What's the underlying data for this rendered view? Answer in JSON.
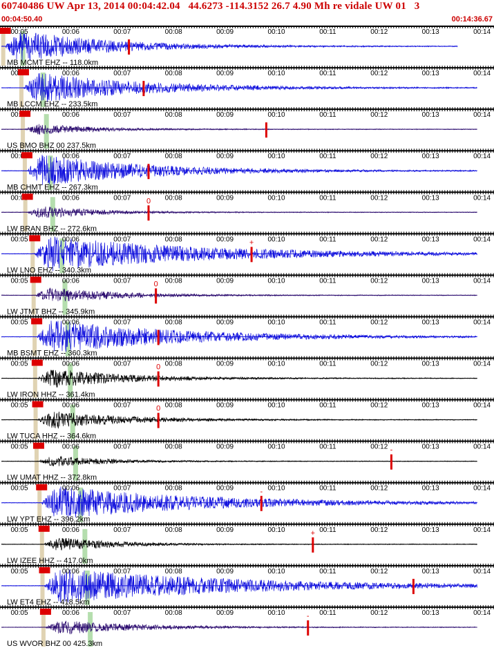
{
  "header": {
    "title": "60740486 UW Apr 13, 2014 00:04:42.04   44.6273 -114.3152 26.7 4.90 Mh re vidale UW 01   3",
    "time_left": "00:04:50.40",
    "time_right": "00:14:36.67"
  },
  "colors": {
    "text_red": "#cc0000",
    "trace_blue": "#1010dd",
    "trace_purple": "#2a0a6e",
    "trace_black": "#000000",
    "pick_red": "#dd0000",
    "band_green": "#a8d8a0",
    "band_tan": "#d8c8a0"
  },
  "chart_data": {
    "type": "line",
    "x_tick_labels": [
      "00:05",
      "00:06",
      "00:07",
      "00:08",
      "00:09",
      "00:10",
      "00:11",
      "00:12",
      "00:13",
      "00:14"
    ],
    "traces": [
      {
        "label": "MB MCMT EHZ -- 118.0km",
        "color": "trace_blue",
        "p_onset": 0.008,
        "end": 0.93,
        "amp": 1.0,
        "decay": 0.18,
        "pick": 0.26,
        "pick_mark": ""
      },
      {
        "label": "MB LCCM EHZ -- 233.5km",
        "color": "trace_blue",
        "p_onset": 0.045,
        "end": 0.97,
        "amp": 0.9,
        "decay": 0.22,
        "pick": 0.29,
        "pick_mark": ""
      },
      {
        "label": "US BMO BHZ 00 237.5km",
        "color": "trace_purple",
        "p_onset": 0.048,
        "end": 0.97,
        "amp": 0.35,
        "decay": 0.12,
        "pick": 0.54,
        "pick_mark": ""
      },
      {
        "label": "MB CHMT EHZ -- 267.3km",
        "color": "trace_blue",
        "p_onset": 0.052,
        "end": 0.97,
        "amp": 0.95,
        "decay": 0.22,
        "pick": 0.3,
        "pick_mark": ""
      },
      {
        "label": "LW BRAN BHZ -- 272.6km",
        "color": "trace_purple",
        "p_onset": 0.053,
        "end": 0.97,
        "amp": 0.4,
        "decay": 0.12,
        "pick": 0.3,
        "pick_mark": "0"
      },
      {
        "label": "LW LNO EHZ -- 340.3km",
        "color": "trace_blue",
        "p_onset": 0.068,
        "end": 0.97,
        "amp": 1.0,
        "decay": 0.32,
        "pick": 0.51,
        "pick_mark": "+"
      },
      {
        "label": "LW JTMT BHZ -- 345.9km",
        "color": "trace_purple",
        "p_onset": 0.07,
        "end": 0.97,
        "amp": 0.5,
        "decay": 0.14,
        "pick": 0.315,
        "pick_mark": "0"
      },
      {
        "label": "MB BSMT EHZ -- 360.3km",
        "color": "trace_blue",
        "p_onset": 0.072,
        "end": 0.97,
        "amp": 1.0,
        "decay": 0.26,
        "pick": 0.32,
        "pick_mark": ""
      },
      {
        "label": "LW IRON HHZ -- 361.4km",
        "color": "trace_black",
        "p_onset": 0.073,
        "end": 0.97,
        "amp": 0.6,
        "decay": 0.16,
        "pick": 0.32,
        "pick_mark": "0"
      },
      {
        "label": "LW TUCA HHZ -- 364.6km",
        "color": "trace_black",
        "p_onset": 0.074,
        "end": 0.97,
        "amp": 0.55,
        "decay": 0.16,
        "pick": 0.32,
        "pick_mark": "0"
      },
      {
        "label": "LW UMAT HHZ -- 372.8km",
        "color": "trace_black",
        "p_onset": 0.076,
        "end": 0.97,
        "amp": 0.35,
        "decay": 0.12,
        "pick": 0.795,
        "pick_mark": "-"
      },
      {
        "label": "LW YPT EHZ -- 396.2km",
        "color": "trace_blue",
        "p_onset": 0.082,
        "end": 0.97,
        "amp": 0.95,
        "decay": 0.3,
        "pick": 0.53,
        "pick_mark": "-"
      },
      {
        "label": "LW IZEE HHZ -- 417.0km",
        "color": "trace_black",
        "p_onset": 0.087,
        "end": 0.97,
        "amp": 0.45,
        "decay": 0.12,
        "pick": 0.635,
        "pick_mark": "+"
      },
      {
        "label": "LW ET4 EHZ -- 418.5km",
        "color": "trace_blue",
        "p_onset": 0.088,
        "end": 0.97,
        "amp": 1.0,
        "decay": 0.36,
        "pick": 0.84,
        "pick_mark": ""
      },
      {
        "label": "US WVOR BHZ 00 425.3km",
        "color": "trace_purple",
        "p_onset": 0.09,
        "end": 0.97,
        "amp": 0.45,
        "decay": 0.16,
        "pick": 0.625,
        "pick_mark": "-"
      }
    ]
  }
}
